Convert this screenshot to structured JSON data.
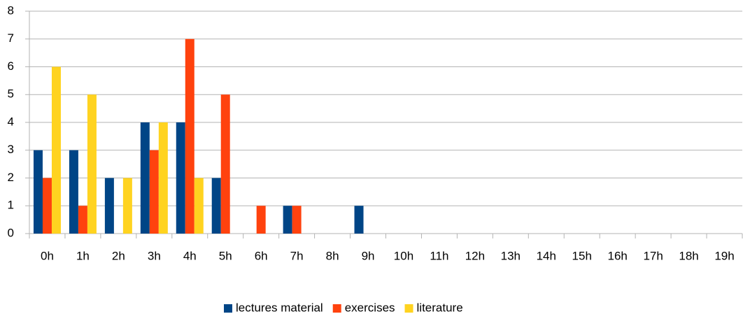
{
  "chart_data": {
    "type": "bar",
    "categories": [
      "0h",
      "1h",
      "2h",
      "3h",
      "4h",
      "5h",
      "6h",
      "7h",
      "8h",
      "9h",
      "10h",
      "11h",
      "12h",
      "13h",
      "14h",
      "15h",
      "16h",
      "17h",
      "18h",
      "19h"
    ],
    "series": [
      {
        "name": "lectures material",
        "color": "#004586",
        "values": [
          3,
          3,
          2,
          4,
          4,
          2,
          0,
          1,
          0,
          1,
          0,
          0,
          0,
          0,
          0,
          0,
          0,
          0,
          0,
          0
        ]
      },
      {
        "name": "exercises",
        "color": "#ff420e",
        "values": [
          2,
          1,
          0,
          3,
          7,
          5,
          1,
          1,
          0,
          0,
          0,
          0,
          0,
          0,
          0,
          0,
          0,
          0,
          0,
          0
        ]
      },
      {
        "name": "literature",
        "color": "#ffd320",
        "values": [
          6,
          5,
          2,
          4,
          2,
          0,
          0,
          0,
          0,
          0,
          0,
          0,
          0,
          0,
          0,
          0,
          0,
          0,
          0,
          0
        ]
      }
    ],
    "ylim": [
      0,
      8
    ],
    "yticks": [
      0,
      1,
      2,
      3,
      4,
      5,
      6,
      7,
      8
    ],
    "grid": true,
    "legend": "bottom"
  }
}
